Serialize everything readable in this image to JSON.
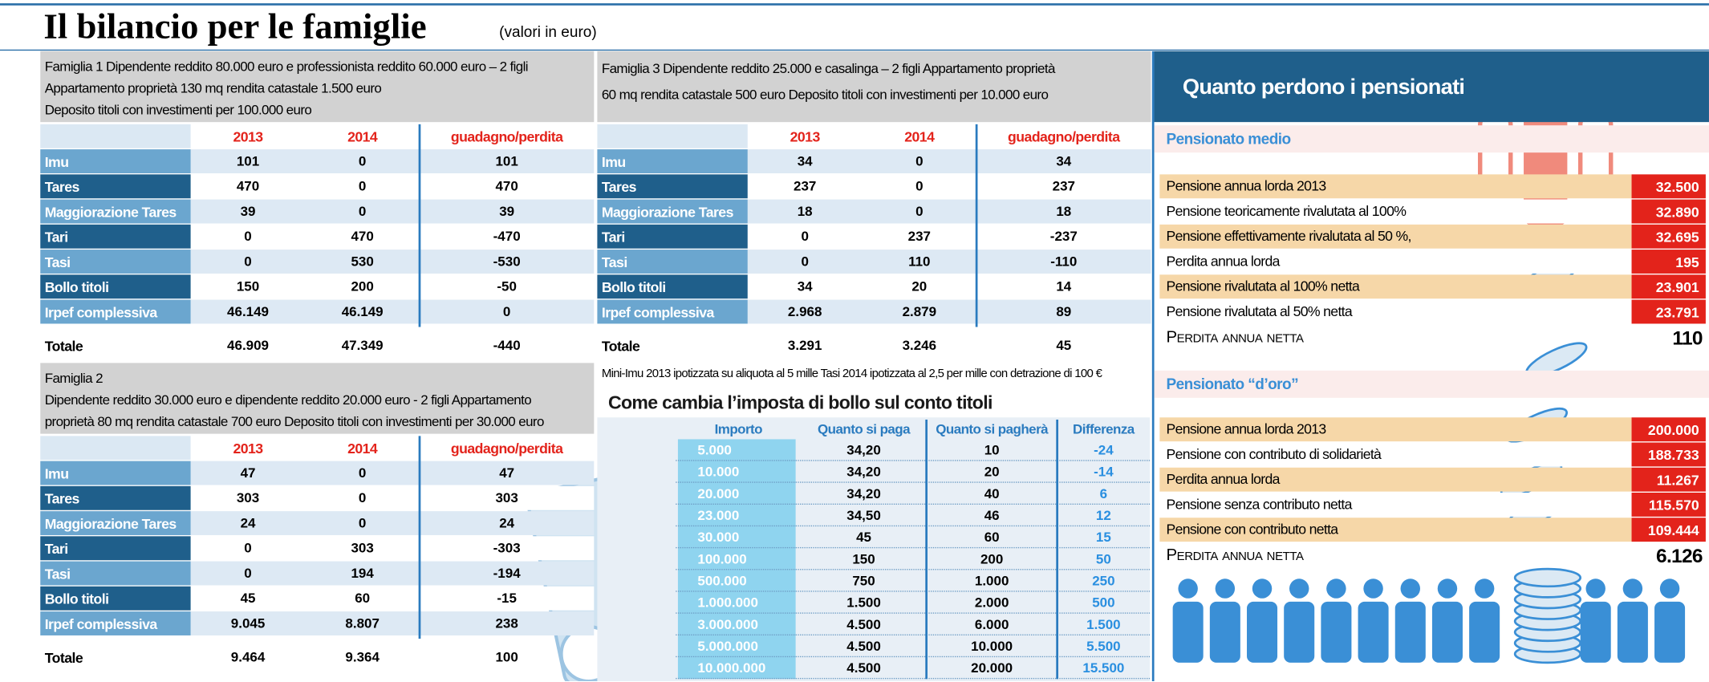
{
  "header": {
    "title": "Il bilancio per le famiglie",
    "subtitle": "(valori in euro)"
  },
  "family_1": {
    "description": [
      "Famiglia 1 Dipendente reddito 80.000 euro e professionista reddito 60.000 euro – 2 figli",
      "Appartamento proprietà 130 mq rendita catastale 1.500 euro",
      "Deposito titoli con investimenti per 100.000 euro"
    ],
    "columns": [
      "2013",
      "2014",
      "guadagno/perdita"
    ],
    "rows": [
      [
        "Imu",
        "101",
        "0",
        "101"
      ],
      [
        "Tares",
        "470",
        "0",
        "470"
      ],
      [
        "Maggiorazione Tares",
        "39",
        "0",
        "39"
      ],
      [
        "Tari",
        "0",
        "470",
        "-470"
      ],
      [
        "Tasi",
        "0",
        "530",
        "-530"
      ],
      [
        "Bollo titoli",
        "150",
        "200",
        "-50"
      ],
      [
        "Irpef complessiva",
        "46.149",
        "46.149",
        "0"
      ]
    ],
    "total": [
      "Totale",
      "46.909",
      "47.349",
      "-440"
    ]
  },
  "family_2": {
    "description": [
      "Famiglia 2",
      "Dipendente reddito 30.000 euro e dipendente reddito 20.000 euro - 2 figli   Appartamento",
      "proprietà 80 mq rendita catastale 700 euro Deposito titoli con investimenti per 30.000 euro"
    ],
    "columns": [
      "2013",
      "2014",
      "guadagno/perdita"
    ],
    "rows": [
      [
        "Imu",
        "47",
        "0",
        "47"
      ],
      [
        "Tares",
        "303",
        "0",
        "303"
      ],
      [
        "Maggiorazione Tares",
        "24",
        "0",
        "24"
      ],
      [
        "Tari",
        "0",
        "303",
        "-303"
      ],
      [
        "Tasi",
        "0",
        "194",
        "-194"
      ],
      [
        "Bollo titoli",
        "45",
        "60",
        "-15"
      ],
      [
        "Irpef complessiva",
        "9.045",
        "8.807",
        "238"
      ]
    ],
    "total": [
      "Totale",
      "9.464",
      "9.364",
      "100"
    ]
  },
  "family_3": {
    "description": [
      "Famiglia 3  Dipendente reddito 25.000 e casalinga – 2 figli  Appartamento proprietà",
      "60 mq rendita catastale 500 euro Deposito titoli con investimenti per 10.000 euro"
    ],
    "columns": [
      "2013",
      "2014",
      "guadagno/perdita"
    ],
    "rows": [
      [
        "Imu",
        "34",
        "0",
        "34"
      ],
      [
        "Tares",
        "237",
        "0",
        "237"
      ],
      [
        "Maggiorazione Tares",
        "18",
        "0",
        "18"
      ],
      [
        "Tari",
        "0",
        "237",
        "-237"
      ],
      [
        "Tasi",
        "0",
        "110",
        "-110"
      ],
      [
        "Bollo titoli",
        "34",
        "20",
        "14"
      ],
      [
        "Irpef complessiva",
        "2.968",
        "2.879",
        "89"
      ]
    ],
    "total": [
      "Totale",
      "3.291",
      "3.246",
      "45"
    ]
  },
  "note": "Mini-Imu 2013 ipotizzata su aliquota al 5 mille    Tasi 2014 ipotizzata al 2,5 per mille con detrazione di 100 €",
  "bollo": {
    "title": "Come cambia l’imposta di bollo sul conto titoli",
    "columns": [
      "Importo",
      "Quanto si paga",
      "Quanto si pagherà",
      "Differenza"
    ],
    "rows": [
      [
        "5.000",
        "34,20",
        "10",
        "-24"
      ],
      [
        "10.000",
        "34,20",
        "20",
        "-14"
      ],
      [
        "20.000",
        "34,20",
        "40",
        "6"
      ],
      [
        "23.000",
        "34,50",
        "46",
        "12"
      ],
      [
        "30.000",
        "45",
        "60",
        "15"
      ],
      [
        "100.000",
        "150",
        "200",
        "50"
      ],
      [
        "500.000",
        "750",
        "1.000",
        "250"
      ],
      [
        "1.000.000",
        "1.500",
        "2.000",
        "500"
      ],
      [
        "3.000.000",
        "4.500",
        "6.000",
        "1.500"
      ],
      [
        "5.000.000",
        "4.500",
        "10.000",
        "5.500"
      ],
      [
        "10.000.000",
        "4.500",
        "20.000",
        "15.500"
      ]
    ]
  },
  "pensioners": {
    "title": "Quanto perdono i pensionati",
    "sections": [
      {
        "title": "Pensionato medio",
        "rows": [
          [
            "Pensione annua lorda 2013",
            "32.500"
          ],
          [
            "Pensione teoricamente rivalutata al 100%",
            "32.890"
          ],
          [
            "Pensione effettivamente rivalutata al 50 %,",
            "32.695"
          ],
          [
            "Perdita annua lorda",
            "195"
          ],
          [
            "Pensione rivalutata al 100% netta",
            "23.901"
          ],
          [
            "Pensione rivalutata al 50% netta",
            "23.791"
          ]
        ],
        "result": [
          "Perdita annua netta",
          "110"
        ]
      },
      {
        "title": "Pensionato “d’oro”",
        "rows": [
          [
            "Pensione annua lorda 2013",
            "200.000"
          ],
          [
            "Pensione con contributo di solidarietà",
            "188.733"
          ],
          [
            "Perdita annua lorda",
            "11.267"
          ],
          [
            "Pensione senza contributo netta",
            "115.570"
          ],
          [
            "Pensione con contributo netta",
            "109.444"
          ]
        ],
        "result": [
          "Perdita annua netta",
          "6.126"
        ]
      }
    ]
  }
}
